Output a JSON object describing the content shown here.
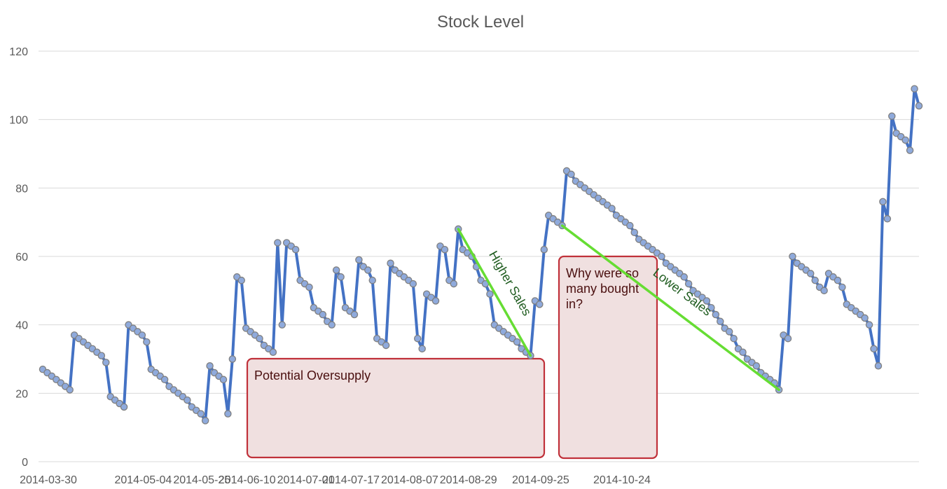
{
  "chart_data": {
    "type": "line",
    "title": "Stock Level",
    "xlabel": "",
    "ylabel": "",
    "ylim": [
      0,
      120
    ],
    "yticks": [
      0,
      20,
      40,
      60,
      80,
      100,
      120
    ],
    "xticks": [
      "2014-03-30",
      "2014-05-04",
      "2014-05-25",
      "2014-06-10",
      "2014-07-01",
      "2014-07-17",
      "2014-08-07",
      "2014-08-29",
      "2014-09-25",
      "2014-10-24"
    ],
    "grid": true,
    "legend": "none",
    "colors": {
      "line": "#4472c4",
      "marker_fill": "#8faadc",
      "marker_stroke": "#7f7f7f",
      "grid": "#d9d9d9",
      "trend": "#66dd33",
      "box_fill": "#f0e0e0",
      "box_stroke": "#c0313a"
    },
    "series": [
      {
        "values": [
          27,
          26,
          25,
          24,
          23,
          22,
          21,
          37,
          36,
          35,
          34,
          33,
          32,
          31,
          29,
          19,
          18,
          17,
          16,
          40,
          39,
          38,
          37,
          35,
          27,
          26,
          25,
          24,
          22,
          21,
          20,
          19,
          18,
          16,
          15,
          14,
          12,
          28,
          26,
          25,
          24,
          14,
          30,
          54,
          53,
          39,
          38,
          37,
          36,
          34,
          33,
          32,
          64,
          40,
          64,
          63,
          62,
          53,
          52,
          51,
          45,
          44,
          43,
          41,
          40,
          56,
          54,
          45,
          44,
          43,
          59,
          57,
          56,
          53,
          36,
          35,
          34,
          58,
          56,
          55,
          54,
          53,
          52,
          36,
          33,
          49,
          48,
          47,
          63,
          62,
          53,
          52,
          68,
          62,
          61,
          60,
          57,
          53,
          52,
          49,
          40,
          39,
          38,
          37,
          36,
          35,
          33,
          32,
          31,
          47,
          46,
          62,
          72,
          71,
          70,
          69,
          85,
          84,
          82,
          81,
          80,
          79,
          78,
          77,
          76,
          75,
          74,
          72,
          71,
          70,
          69,
          67,
          65,
          64,
          63,
          62,
          61,
          60,
          58,
          57,
          56,
          55,
          54,
          52,
          50,
          49,
          48,
          47,
          45,
          43,
          41,
          39,
          38,
          36,
          33,
          32,
          30,
          29,
          28,
          26,
          25,
          24,
          23,
          21,
          37,
          36,
          60,
          58,
          57,
          56,
          55,
          53,
          51,
          50,
          55,
          54,
          53,
          51,
          46,
          45,
          44,
          43,
          42,
          40,
          33,
          28,
          76,
          71,
          101,
          96,
          95,
          94,
          91,
          109,
          104
        ]
      }
    ],
    "trendlines": [
      {
        "label": "Higher Sales",
        "from_index": 92,
        "to_index": 108
      },
      {
        "label": "Lower Sales",
        "from_index": 115,
        "to_index": 163
      }
    ],
    "annotations": [
      {
        "text_lines": [
          "Potential Oversupply"
        ]
      },
      {
        "text_lines": [
          "Why were so",
          "many bought",
          "in?"
        ]
      }
    ]
  }
}
